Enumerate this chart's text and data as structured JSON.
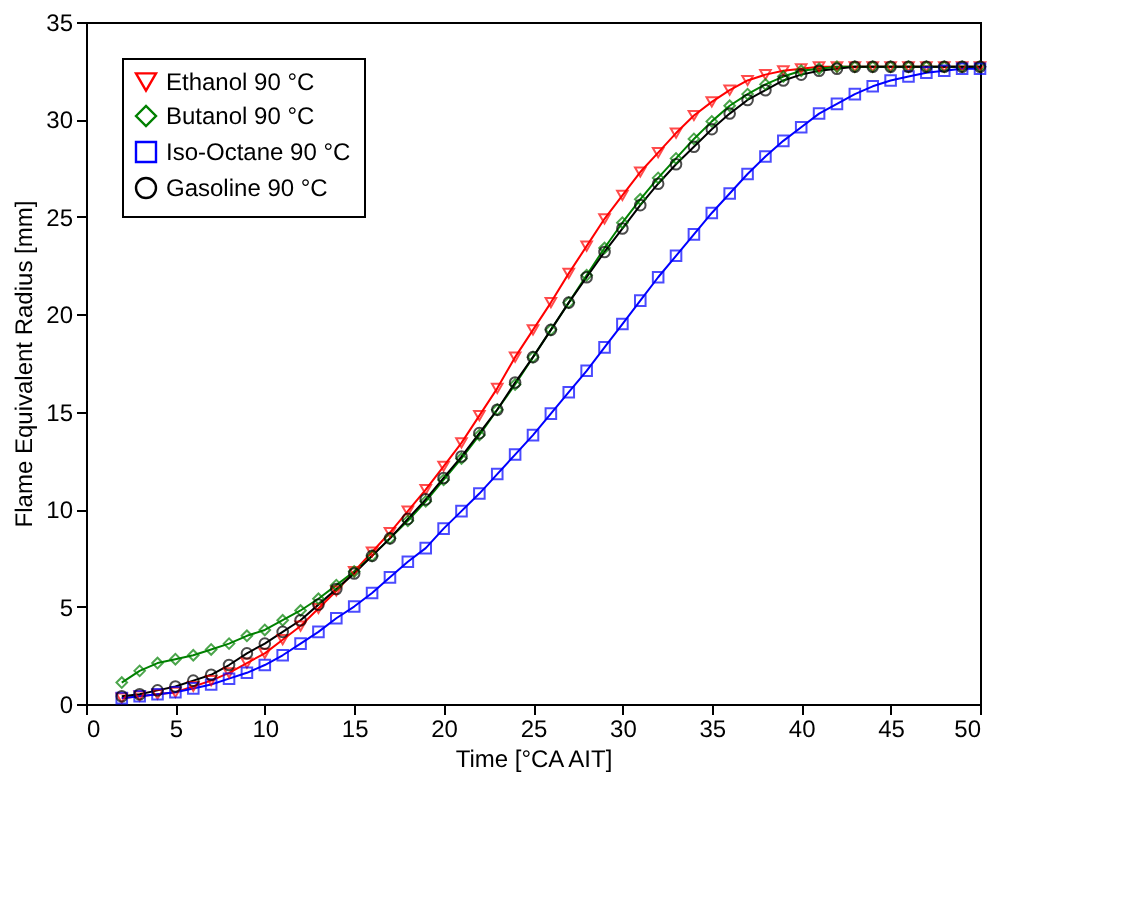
{
  "chart_data": {
    "type": "line",
    "xlabel": "Time [°CA AIT]",
    "ylabel": "Flame Equivalent Radius [mm]",
    "x": [
      2,
      3,
      4,
      5,
      6,
      7,
      8,
      9,
      10,
      11,
      12,
      13,
      14,
      15,
      16,
      17,
      18,
      19,
      20,
      21,
      22,
      23,
      24,
      25,
      26,
      27,
      28,
      29,
      30,
      31,
      32,
      33,
      34,
      35,
      36,
      37,
      38,
      39,
      40,
      41,
      42,
      43,
      44,
      45,
      46,
      47,
      48,
      49,
      50
    ],
    "series": [
      {
        "name": "Ethanol 90 °C",
        "color": "#ff0000",
        "marker": "triangle-down",
        "values": [
          0.3,
          0.4,
          0.5,
          0.6,
          0.9,
          1.2,
          1.6,
          2.1,
          2.6,
          3.3,
          4.0,
          4.9,
          5.8,
          6.8,
          7.8,
          8.8,
          9.9,
          11.0,
          12.2,
          13.4,
          14.8,
          16.2,
          17.8,
          19.2,
          20.6,
          22.1,
          23.5,
          24.9,
          26.1,
          27.3,
          28.3,
          29.3,
          30.2,
          30.9,
          31.5,
          32.0,
          32.3,
          32.5,
          32.6,
          32.7,
          32.7,
          32.7,
          32.7,
          32.7,
          32.7,
          32.7,
          32.7,
          32.7,
          32.7
        ]
      },
      {
        "name": "Butanol 90 °C",
        "color": "#008000",
        "marker": "diamond",
        "values": [
          1.1,
          1.7,
          2.1,
          2.3,
          2.5,
          2.8,
          3.1,
          3.5,
          3.8,
          4.3,
          4.8,
          5.4,
          6.1,
          6.8,
          7.6,
          8.5,
          9.4,
          10.4,
          11.5,
          12.6,
          13.8,
          15.1,
          16.4,
          17.8,
          19.2,
          20.6,
          22.0,
          23.4,
          24.7,
          25.9,
          27.0,
          28.0,
          29.0,
          29.9,
          30.7,
          31.3,
          31.8,
          32.2,
          32.5,
          32.6,
          32.7,
          32.7,
          32.7,
          32.7,
          32.7,
          32.7,
          32.7,
          32.7,
          32.7
        ]
      },
      {
        "name": "Iso-Octane 90 °C",
        "color": "#0000ff",
        "marker": "square",
        "values": [
          0.3,
          0.4,
          0.5,
          0.6,
          0.8,
          1.0,
          1.3,
          1.6,
          2.0,
          2.5,
          3.1,
          3.7,
          4.4,
          5.0,
          5.7,
          6.5,
          7.3,
          8.0,
          9.0,
          9.9,
          10.8,
          11.8,
          12.8,
          13.8,
          14.9,
          16.0,
          17.1,
          18.3,
          19.5,
          20.7,
          21.9,
          23.0,
          24.1,
          25.2,
          26.2,
          27.2,
          28.1,
          28.9,
          29.6,
          30.3,
          30.8,
          31.3,
          31.7,
          32.0,
          32.2,
          32.4,
          32.5,
          32.6,
          32.6
        ]
      },
      {
        "name": "Gasoline 90 °C",
        "color": "#000000",
        "marker": "circle",
        "values": [
          0.4,
          0.5,
          0.7,
          0.9,
          1.2,
          1.5,
          2.0,
          2.6,
          3.1,
          3.7,
          4.3,
          5.1,
          5.9,
          6.7,
          7.6,
          8.5,
          9.5,
          10.5,
          11.6,
          12.7,
          13.9,
          15.1,
          16.5,
          17.8,
          19.2,
          20.6,
          21.9,
          23.2,
          24.4,
          25.6,
          26.7,
          27.7,
          28.6,
          29.5,
          30.3,
          31.0,
          31.5,
          32.0,
          32.3,
          32.5,
          32.6,
          32.7,
          32.7,
          32.7,
          32.7,
          32.7,
          32.7,
          32.7,
          32.7
        ]
      }
    ],
    "xlim": [
      0,
      50
    ],
    "xticks": [
      0,
      5,
      10,
      15,
      20,
      25,
      30,
      35,
      40,
      45,
      50
    ],
    "ylim": [
      0,
      35
    ],
    "yticks": [
      0,
      5,
      10,
      15,
      20,
      25,
      30,
      35
    ],
    "grid": false,
    "legend": "top left",
    "line_style": "solid"
  }
}
